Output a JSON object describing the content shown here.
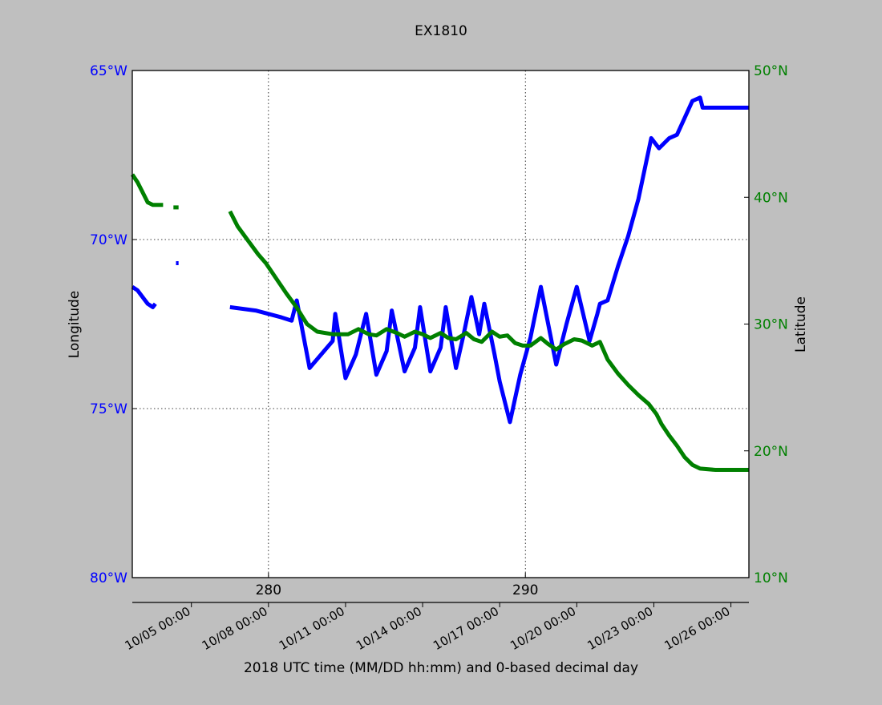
{
  "chart_data": {
    "type": "line",
    "title": "EX1810",
    "xlabel": "2018 UTC time (MM/DD hh:mm) and 0-based decimal day",
    "ylabel_left": "Longitude",
    "ylabel_right": "Latitude",
    "xlim": [
      274.7,
      298.7
    ],
    "ylim_left": [
      -80,
      -65
    ],
    "ylim_right": [
      10,
      50
    ],
    "grid": true,
    "left_ticks": [
      {
        "value": -65,
        "label": "65°W"
      },
      {
        "value": -70,
        "label": "70°W"
      },
      {
        "value": -75,
        "label": "75°W"
      },
      {
        "value": -80,
        "label": "80°W"
      }
    ],
    "right_ticks": [
      {
        "value": 50,
        "label": "50°N"
      },
      {
        "value": 40,
        "label": "40°N"
      },
      {
        "value": 30,
        "label": "30°N"
      },
      {
        "value": 20,
        "label": "20°N"
      },
      {
        "value": 10,
        "label": "10°N"
      }
    ],
    "day_ticks": [
      {
        "value": 280,
        "label": "280"
      },
      {
        "value": 290,
        "label": "290"
      }
    ],
    "date_ticks": [
      {
        "value": 277,
        "label": "10/05 00:00"
      },
      {
        "value": 280,
        "label": "10/08 00:00"
      },
      {
        "value": 283,
        "label": "10/11 00:00"
      },
      {
        "value": 286,
        "label": "10/14 00:00"
      },
      {
        "value": 289,
        "label": "10/17 00:00"
      },
      {
        "value": 292,
        "label": "10/20 00:00"
      },
      {
        "value": 295,
        "label": "10/23 00:00"
      },
      {
        "value": 298,
        "label": "10/26 00:00"
      }
    ],
    "series": [
      {
        "name": "Longitude",
        "axis": "left",
        "color": "#0000ff",
        "segments": [
          [
            [
              274.7,
              -71.4
            ],
            [
              274.9,
              -71.5
            ],
            [
              275.2,
              -71.8
            ],
            [
              275.3,
              -71.9
            ],
            [
              275.5,
              -72.0
            ],
            [
              275.6,
              -71.9
            ]
          ],
          [
            [
              276.4,
              -70.7
            ],
            [
              276.5,
              -70.7
            ]
          ],
          [
            [
              278.5,
              -72.0
            ],
            [
              279.5,
              -72.1
            ],
            [
              280.5,
              -72.3
            ],
            [
              280.9,
              -72.4
            ],
            [
              281.1,
              -71.8
            ],
            [
              281.6,
              -73.8
            ],
            [
              282.5,
              -73.0
            ],
            [
              282.6,
              -72.2
            ],
            [
              283.0,
              -74.1
            ],
            [
              283.4,
              -73.4
            ],
            [
              283.8,
              -72.2
            ],
            [
              284.2,
              -74.0
            ],
            [
              284.6,
              -73.3
            ],
            [
              284.8,
              -72.1
            ],
            [
              285.3,
              -73.9
            ],
            [
              285.7,
              -73.2
            ],
            [
              285.9,
              -72.0
            ],
            [
              286.3,
              -73.9
            ],
            [
              286.7,
              -73.2
            ],
            [
              286.9,
              -72.0
            ],
            [
              287.3,
              -73.8
            ],
            [
              287.6,
              -72.8
            ],
            [
              287.9,
              -71.7
            ],
            [
              288.2,
              -72.8
            ],
            [
              288.4,
              -71.9
            ],
            [
              288.8,
              -73.4
            ],
            [
              289.0,
              -74.2
            ],
            [
              289.4,
              -75.4
            ],
            [
              289.8,
              -74.0
            ],
            [
              290.2,
              -72.9
            ],
            [
              290.6,
              -71.4
            ],
            [
              291.2,
              -73.7
            ],
            [
              291.6,
              -72.5
            ],
            [
              292.0,
              -71.4
            ],
            [
              292.5,
              -73.0
            ],
            [
              292.8,
              -72.2
            ],
            [
              292.9,
              -71.9
            ],
            [
              293.2,
              -71.8
            ],
            [
              293.6,
              -70.8
            ],
            [
              294.0,
              -69.9
            ],
            [
              294.4,
              -68.8
            ],
            [
              294.9,
              -67.0
            ],
            [
              295.2,
              -67.3
            ],
            [
              295.6,
              -67.0
            ],
            [
              295.9,
              -66.9
            ],
            [
              296.2,
              -66.4
            ],
            [
              296.5,
              -65.9
            ],
            [
              296.8,
              -65.8
            ],
            [
              296.9,
              -66.1
            ],
            [
              297.2,
              -66.1
            ],
            [
              298.7,
              -66.1
            ]
          ]
        ]
      },
      {
        "name": "Latitude",
        "axis": "right",
        "color": "#008000",
        "segments": [
          [
            [
              274.7,
              41.8
            ],
            [
              274.9,
              41.2
            ],
            [
              275.1,
              40.4
            ],
            [
              275.3,
              39.6
            ],
            [
              275.5,
              39.4
            ],
            [
              275.6,
              39.4
            ],
            [
              275.9,
              39.4
            ]
          ],
          [
            [
              276.3,
              39.2
            ],
            [
              276.5,
              39.2
            ]
          ],
          [
            [
              278.5,
              38.9
            ],
            [
              278.8,
              37.7
            ],
            [
              279.2,
              36.6
            ],
            [
              279.6,
              35.5
            ],
            [
              279.9,
              34.8
            ],
            [
              280.3,
              33.6
            ],
            [
              280.7,
              32.4
            ],
            [
              281.1,
              31.3
            ],
            [
              281.5,
              30.0
            ],
            [
              281.9,
              29.4
            ],
            [
              282.5,
              29.2
            ],
            [
              283.1,
              29.2
            ],
            [
              283.5,
              29.6
            ],
            [
              283.9,
              29.2
            ],
            [
              284.2,
              29.1
            ],
            [
              284.6,
              29.6
            ],
            [
              285.0,
              29.3
            ],
            [
              285.3,
              29.0
            ],
            [
              285.7,
              29.4
            ],
            [
              286.0,
              29.2
            ],
            [
              286.3,
              28.9
            ],
            [
              286.7,
              29.3
            ],
            [
              287.0,
              28.9
            ],
            [
              287.3,
              28.8
            ],
            [
              287.7,
              29.3
            ],
            [
              288.0,
              28.8
            ],
            [
              288.3,
              28.6
            ],
            [
              288.7,
              29.4
            ],
            [
              289.0,
              29.0
            ],
            [
              289.3,
              29.1
            ],
            [
              289.6,
              28.5
            ],
            [
              289.9,
              28.3
            ],
            [
              290.2,
              28.3
            ],
            [
              290.6,
              28.9
            ],
            [
              290.9,
              28.4
            ],
            [
              291.2,
              28.0
            ],
            [
              291.5,
              28.4
            ],
            [
              291.9,
              28.8
            ],
            [
              292.2,
              28.7
            ],
            [
              292.6,
              28.3
            ],
            [
              292.9,
              28.6
            ],
            [
              293.2,
              27.2
            ],
            [
              293.6,
              26.1
            ],
            [
              294.0,
              25.2
            ],
            [
              294.4,
              24.4
            ],
            [
              294.8,
              23.7
            ],
            [
              295.1,
              22.9
            ],
            [
              295.3,
              22.1
            ],
            [
              295.6,
              21.2
            ],
            [
              295.9,
              20.4
            ],
            [
              296.2,
              19.5
            ],
            [
              296.5,
              18.9
            ],
            [
              296.8,
              18.6
            ],
            [
              297.4,
              18.5
            ],
            [
              298.0,
              18.5
            ],
            [
              298.7,
              18.5
            ]
          ]
        ]
      }
    ]
  }
}
